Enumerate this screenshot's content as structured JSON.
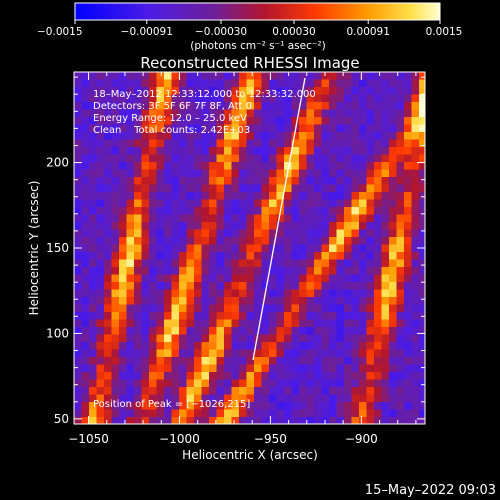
{
  "chart_data": {
    "type": "heatmap",
    "title": "Reconstructed RHESSI Image",
    "xlabel": "Heliocentric X (arcsec)",
    "ylabel": "Heliocentric Y (arcsec)",
    "xlim": [
      -1058,
      -865
    ],
    "ylim": [
      47,
      253
    ],
    "xticks": [
      -1050,
      -1000,
      -950,
      -900
    ],
    "yticks": [
      50,
      100,
      150,
      200
    ],
    "xtick_labels": [
      "−1050",
      "−1000",
      "−950",
      "−900"
    ],
    "ytick_labels": [
      "50",
      "100",
      "150",
      "200"
    ],
    "colorbar": {
      "min": -0.0015,
      "max": 0.0015,
      "ticks": [
        -0.0015,
        -0.00091,
        -0.0003,
        0.0003,
        0.00091,
        0.0015
      ],
      "tick_labels": [
        "−0.0015",
        "−0.00091",
        "−0.00030",
        "0.00030",
        "0.00091",
        "0.0015"
      ],
      "units_label": "(photons cm⁻² s⁻¹ asec⁻²)"
    },
    "annotations": [
      "18–May–2012 12:33:12.000 to 12:33:32.000",
      "Detectors: 3F 5F 6F 7F 8F, Att 0",
      "Energy Range: 12.0 – 25.0 keV",
      "Clean    Total counts: 2.42E+03",
      "Position of Peak = [−1026,215]"
    ],
    "stripe_centers_x": [
      -1027,
      -990,
      -958,
      -915,
      -880
    ],
    "peak": [
      -1026,
      215
    ]
  },
  "footer_timestamp": "15–May–2022 09:03"
}
